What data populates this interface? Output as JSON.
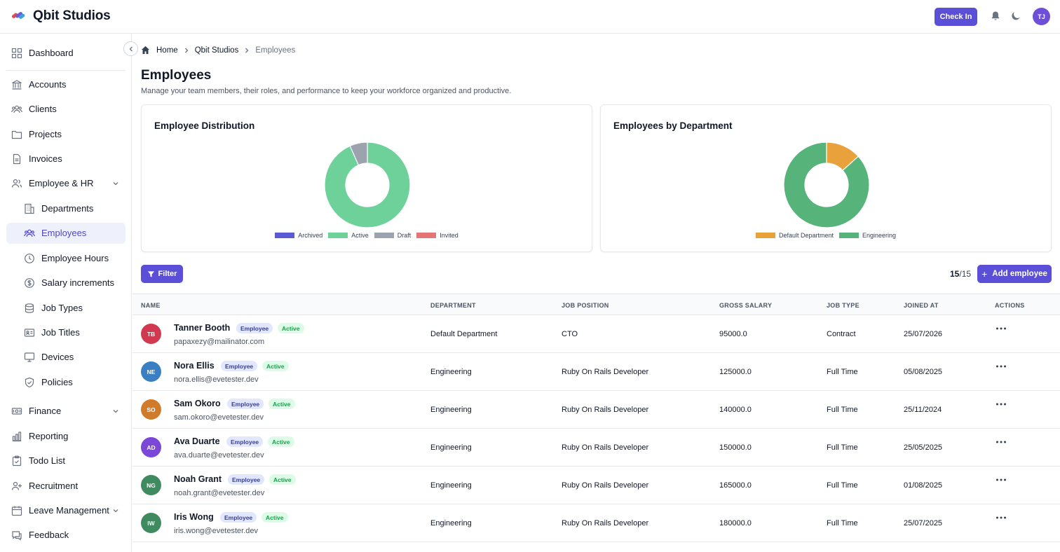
{
  "header": {
    "brand": "Qbit Studios",
    "checkin_label": "Check In",
    "user_initials": "TJ"
  },
  "sidebar": {
    "items": [
      {
        "label": "Dashboard",
        "icon": "grid-icon"
      },
      {
        "label": "Accounts",
        "icon": "bank-icon"
      },
      {
        "label": "Clients",
        "icon": "users-group-icon"
      },
      {
        "label": "Projects",
        "icon": "folder-icon"
      },
      {
        "label": "Invoices",
        "icon": "file-icon"
      },
      {
        "label": "Employee & HR",
        "icon": "user-group-icon",
        "expanded": true
      },
      {
        "label": "Departments",
        "icon": "building-icon",
        "sub": true
      },
      {
        "label": "Employees",
        "icon": "users-group-icon",
        "sub": true,
        "active": true
      },
      {
        "label": "Employee Hours",
        "icon": "clock-icon",
        "sub": true
      },
      {
        "label": "Salary increments",
        "icon": "dollar-icon",
        "sub": true
      },
      {
        "label": "Job Types",
        "icon": "database-icon",
        "sub": true
      },
      {
        "label": "Job Titles",
        "icon": "id-card-icon",
        "sub": true
      },
      {
        "label": "Devices",
        "icon": "monitor-icon",
        "sub": true
      },
      {
        "label": "Policies",
        "icon": "shield-icon",
        "sub": true
      },
      {
        "label": "Finance",
        "icon": "money-icon"
      },
      {
        "label": "Reporting",
        "icon": "bar-chart-icon"
      },
      {
        "label": "Todo List",
        "icon": "clipboard-icon"
      },
      {
        "label": "Recruitment",
        "icon": "user-plus-icon"
      },
      {
        "label": "Leave Management",
        "icon": "calendar-icon"
      },
      {
        "label": "Feedback",
        "icon": "chat-icon"
      }
    ]
  },
  "breadcrumb": {
    "home": "Home",
    "org": "Qbit Studios",
    "current": "Employees"
  },
  "page": {
    "title": "Employees",
    "subtitle": "Manage your team members, their roles, and performance to keep your workforce organized and productive."
  },
  "chart_data": [
    {
      "type": "pie",
      "title": "Employee Distribution",
      "categories": [
        "Archived",
        "Active",
        "Draft",
        "Invited"
      ],
      "values": [
        0,
        14,
        1,
        0
      ],
      "colors": [
        "#5b5bd6",
        "#6fd19a",
        "#9ca3af",
        "#e57373"
      ],
      "legend": "bottom"
    },
    {
      "type": "pie",
      "title": "Employees by Department",
      "categories": [
        "Default Department",
        "Engineering"
      ],
      "values": [
        2,
        13
      ],
      "colors": [
        "#e9a23b",
        "#56b37a"
      ],
      "legend": "bottom"
    }
  ],
  "toolbar": {
    "filter_label": "Filter",
    "count_shown": "15",
    "count_total": "/15",
    "add_label": "Add employee"
  },
  "table": {
    "columns": [
      "NAME",
      "DEPARTMENT",
      "JOB POSITION",
      "GROSS SALARY",
      "JOB TYPE",
      "JOINED AT",
      "ACTIONS"
    ],
    "rows": [
      {
        "initials": "TB",
        "color": "#d0394f",
        "name": "Tanner Booth",
        "role": "Employee",
        "status": "Active",
        "email": "papaxezy@mailinator.com",
        "department": "Default Department",
        "position": "CTO",
        "salary": "95000.0",
        "job_type": "Contract",
        "joined": "25/07/2026"
      },
      {
        "initials": "NE",
        "color": "#3a7fc1",
        "name": "Nora Ellis",
        "role": "Employee",
        "status": "Active",
        "email": "nora.ellis@evetester.dev",
        "department": "Engineering",
        "position": "Ruby On Rails Developer",
        "salary": "125000.0",
        "job_type": "Full Time",
        "joined": "05/08/2025"
      },
      {
        "initials": "SO",
        "color": "#d07b2c",
        "name": "Sam Okoro",
        "role": "Employee",
        "status": "Active",
        "email": "sam.okoro@evetester.dev",
        "department": "Engineering",
        "position": "Ruby On Rails Developer",
        "salary": "140000.0",
        "job_type": "Full Time",
        "joined": "25/11/2024"
      },
      {
        "initials": "AD",
        "color": "#7b47d9",
        "name": "Ava Duarte",
        "role": "Employee",
        "status": "Active",
        "email": "ava.duarte@evetester.dev",
        "department": "Engineering",
        "position": "Ruby On Rails Developer",
        "salary": "150000.0",
        "job_type": "Full Time",
        "joined": "25/05/2025"
      },
      {
        "initials": "NG",
        "color": "#3f8a5e",
        "name": "Noah Grant",
        "role": "Employee",
        "status": "Active",
        "email": "noah.grant@evetester.dev",
        "department": "Engineering",
        "position": "Ruby On Rails Developer",
        "salary": "165000.0",
        "job_type": "Full Time",
        "joined": "01/08/2025"
      },
      {
        "initials": "IW",
        "color": "#3f8a5e",
        "name": "Iris Wong",
        "role": "Employee",
        "status": "Active",
        "email": "iris.wong@evetester.dev",
        "department": "Engineering",
        "position": "Ruby On Rails Developer",
        "salary": "180000.0",
        "job_type": "Full Time",
        "joined": "25/07/2025"
      }
    ]
  }
}
